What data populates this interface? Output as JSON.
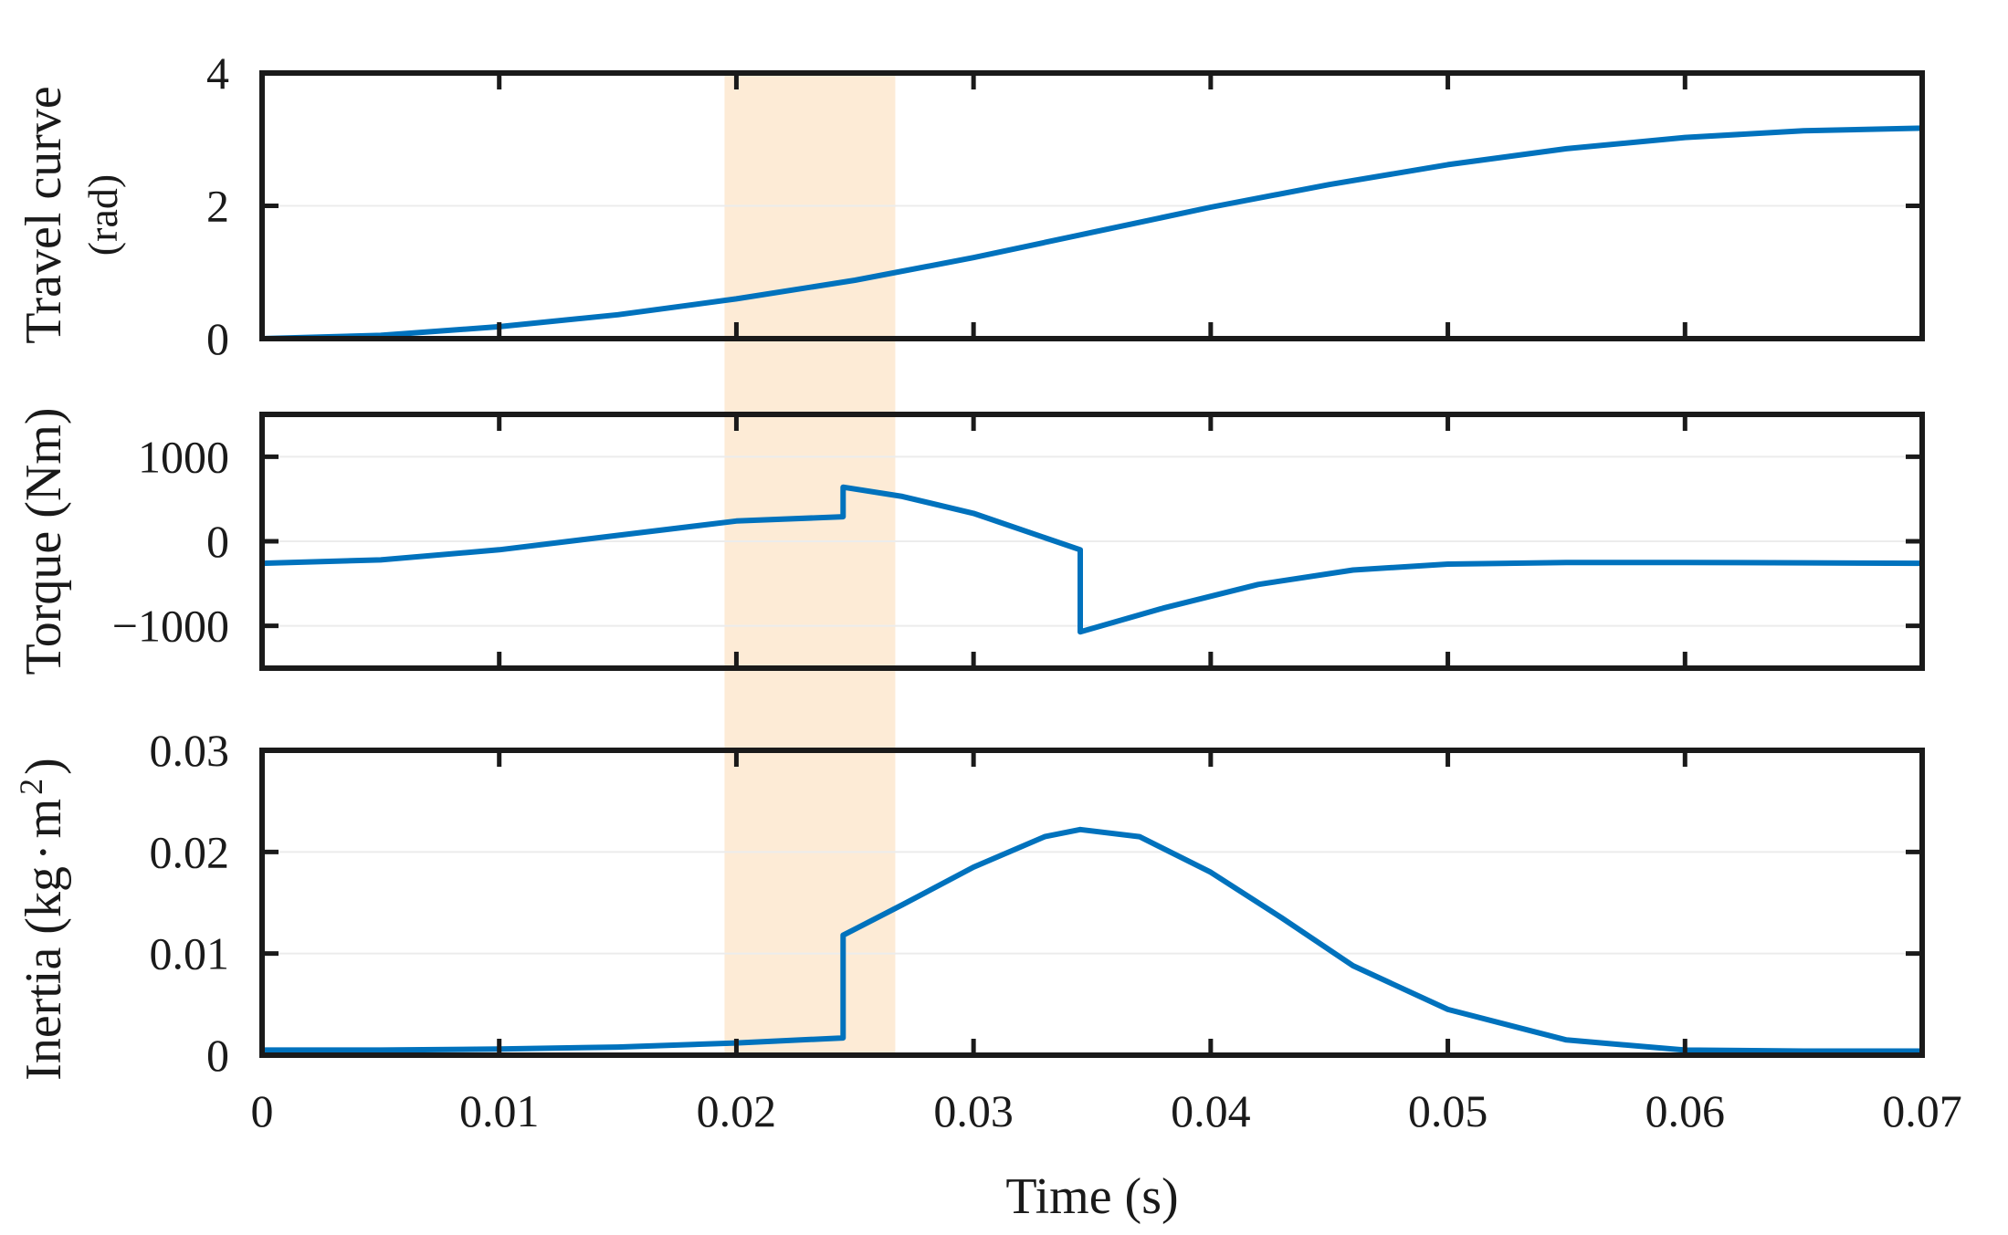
{
  "colors": {
    "series": "#0072bd",
    "highlight": "#fdebd6",
    "axis": "#1a1a1a",
    "grid": "#ececec"
  },
  "chart_data": [
    {
      "type": "line",
      "title": "",
      "xlabel": "",
      "ylabel_line1": "Travel curve",
      "ylabel_line2": "(rad)",
      "xlim": [
        0,
        0.07
      ],
      "ylim": [
        0,
        4
      ],
      "yticks": [
        0,
        2,
        4
      ],
      "ytick_labels": [
        "0",
        "2",
        "4"
      ],
      "grid": true,
      "highlight_x": [
        0.0195,
        0.0267
      ],
      "x": [
        0,
        0.005,
        0.01,
        0.015,
        0.02,
        0.025,
        0.03,
        0.035,
        0.04,
        0.045,
        0.05,
        0.055,
        0.06,
        0.065,
        0.07
      ],
      "values": [
        0.0,
        0.05,
        0.18,
        0.36,
        0.6,
        0.88,
        1.22,
        1.6,
        1.98,
        2.32,
        2.62,
        2.86,
        3.03,
        3.13,
        3.17
      ]
    },
    {
      "type": "line",
      "title": "",
      "xlabel": "",
      "ylabel": "Torque (Nm)",
      "xlim": [
        0,
        0.07
      ],
      "ylim": [
        -1500,
        1500
      ],
      "yticks": [
        -1000,
        0,
        1000
      ],
      "ytick_labels": [
        "−1000",
        "0",
        "1000"
      ],
      "grid": true,
      "highlight_x": [
        0.0195,
        0.0267
      ],
      "x": [
        0,
        0.005,
        0.01,
        0.015,
        0.02,
        0.0245,
        0.0245,
        0.027,
        0.03,
        0.0345,
        0.0345,
        0.038,
        0.042,
        0.046,
        0.05,
        0.055,
        0.06,
        0.065,
        0.07
      ],
      "values": [
        -260,
        -220,
        -100,
        70,
        240,
        290,
        640,
        530,
        330,
        -100,
        -1070,
        -790,
        -510,
        -340,
        -270,
        -250,
        -250,
        -255,
        -260
      ]
    },
    {
      "type": "line",
      "title": "",
      "xlabel": "Time (s)",
      "ylabel": "Inertia (kg·m²)",
      "ylabel_base": "Inertia (kg",
      "ylabel_mid": "m",
      "ylabel_exp": "2",
      "ylabel_close": ")",
      "xlim": [
        0,
        0.07
      ],
      "xticks": [
        0,
        0.01,
        0.02,
        0.03,
        0.04,
        0.05,
        0.06,
        0.07
      ],
      "xtick_labels": [
        "0",
        "0.01",
        "0.02",
        "0.03",
        "0.04",
        "0.05",
        "0.06",
        "0.07"
      ],
      "ylim": [
        0,
        0.03
      ],
      "yticks": [
        0,
        0.01,
        0.02,
        0.03
      ],
      "ytick_labels": [
        "0",
        "0.01",
        "0.02",
        "0.03"
      ],
      "grid": true,
      "highlight_x": [
        0.0195,
        0.0267
      ],
      "x": [
        0,
        0.005,
        0.01,
        0.015,
        0.02,
        0.0245,
        0.0245,
        0.027,
        0.03,
        0.033,
        0.0345,
        0.037,
        0.04,
        0.043,
        0.046,
        0.05,
        0.055,
        0.06,
        0.065,
        0.07
      ],
      "values": [
        0.0005,
        0.0005,
        0.0006,
        0.0008,
        0.0012,
        0.0017,
        0.0118,
        0.0148,
        0.0185,
        0.0215,
        0.0222,
        0.0215,
        0.018,
        0.0135,
        0.0088,
        0.0045,
        0.0015,
        0.0005,
        0.0004,
        0.0004
      ]
    }
  ]
}
